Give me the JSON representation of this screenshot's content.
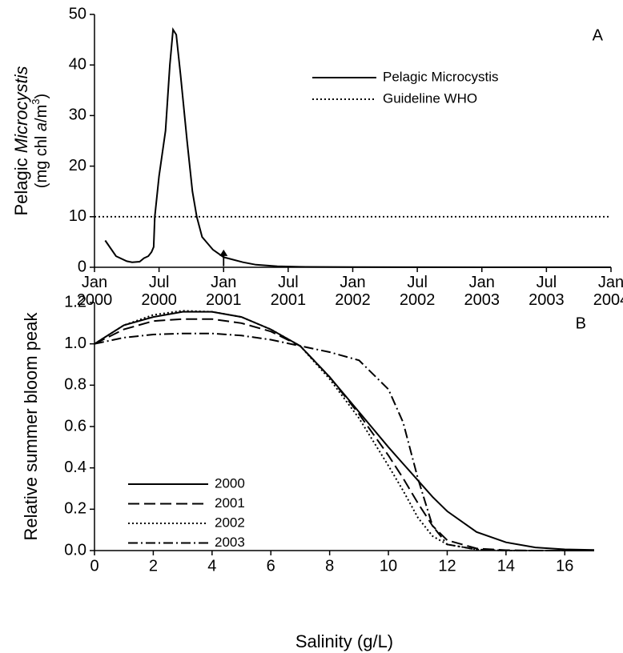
{
  "chart_data": [
    {
      "type": "line",
      "panel_label": "A",
      "ylabel": {
        "line1": [
          "Pelagic ",
          "Microcystis"
        ],
        "line2": [
          "(mg chl ",
          "a",
          "/m",
          "3",
          ")"
        ]
      },
      "x": [
        1,
        2,
        3,
        3.5,
        4.2,
        4.6,
        5,
        5.3,
        5.5,
        5.6,
        6,
        6.6,
        7,
        7.3,
        7.6,
        8,
        8.6,
        9.1,
        9.5,
        10,
        11,
        12,
        13.8,
        15,
        17,
        19,
        24,
        30,
        36,
        42,
        48
      ],
      "series": [
        {
          "name": "Pelagic Microcystis",
          "color": "#000000",
          "style": "solid",
          "values": [
            5.3,
            2.2,
            1.2,
            1.0,
            1.1,
            1.8,
            2.2,
            3.0,
            4.0,
            10,
            18,
            27,
            40,
            47,
            46,
            38,
            25,
            15,
            10,
            6,
            3.5,
            2,
            1,
            0.5,
            0.2,
            0.1,
            0.03,
            0.01,
            0,
            0,
            0
          ]
        }
      ],
      "hlines": [
        {
          "name": "Guideline WHO",
          "value": 10,
          "color": "#000000",
          "style": "dotted"
        }
      ],
      "arrow": {
        "x": 12,
        "y": [
          0.2,
          3.5
        ]
      },
      "xlim": [
        0,
        48
      ],
      "xticks": [
        {
          "value": 0,
          "label": "Jan 2000"
        },
        {
          "value": 6,
          "label": "Jul 2000"
        },
        {
          "value": 12,
          "label": "Jan 2001"
        },
        {
          "value": 18,
          "label": "Jul 2001"
        },
        {
          "value": 24,
          "label": "Jan 2002"
        },
        {
          "value": 30,
          "label": "Jul 2002"
        },
        {
          "value": 36,
          "label": "Jan 2003"
        },
        {
          "value": 42,
          "label": "Jul 2003"
        },
        {
          "value": 48,
          "label": "Jan 2004"
        }
      ],
      "ylim": [
        0,
        50
      ],
      "yticks": [
        0,
        10,
        20,
        30,
        40,
        50
      ]
    },
    {
      "type": "line",
      "panel_label": "B",
      "ylabel": "Relative summer bloom peak",
      "xlabel": "Salinity (g/L)",
      "x": [
        0,
        1,
        2,
        3,
        4,
        5,
        6,
        7,
        8,
        9,
        10,
        10.5,
        11,
        11.5,
        12,
        13,
        14,
        15,
        16,
        17
      ],
      "series": [
        {
          "name": "2000",
          "color": "#000000",
          "style": "solid",
          "values": [
            1.0,
            1.09,
            1.13,
            1.155,
            1.155,
            1.13,
            1.07,
            0.99,
            0.84,
            0.67,
            0.5,
            0.42,
            0.34,
            0.26,
            0.19,
            0.09,
            0.04,
            0.015,
            0.006,
            0.003
          ]
        },
        {
          "name": "2001",
          "color": "#000000",
          "style": "dashed",
          "values": [
            1.0,
            1.07,
            1.11,
            1.12,
            1.12,
            1.1,
            1.06,
            0.99,
            0.84,
            0.66,
            0.46,
            0.35,
            0.23,
            0.12,
            0.05,
            0.01,
            0.002,
            0,
            0,
            0
          ]
        },
        {
          "name": "2002",
          "color": "#000000",
          "style": "dotted",
          "values": [
            1.0,
            1.09,
            1.14,
            1.16,
            1.155,
            1.13,
            1.07,
            0.99,
            0.83,
            0.64,
            0.41,
            0.29,
            0.16,
            0.07,
            0.03,
            0.005,
            0,
            0,
            0,
            0
          ]
        },
        {
          "name": "2003",
          "color": "#000000",
          "style": "dashdot",
          "values": [
            1.0,
            1.03,
            1.045,
            1.05,
            1.05,
            1.04,
            1.02,
            0.99,
            0.96,
            0.92,
            0.78,
            0.62,
            0.35,
            0.12,
            0.03,
            0.005,
            0,
            0,
            0,
            0
          ]
        }
      ],
      "xlim": [
        0,
        17
      ],
      "xticks": [
        0,
        2,
        4,
        6,
        8,
        10,
        12,
        14,
        16
      ],
      "ylim": [
        0,
        1.2
      ],
      "yticks": [
        {
          "value": 0,
          "label": "0.0"
        },
        0.2,
        0.4,
        0.6,
        0.8,
        {
          "value": 1,
          "label": "1.0"
        },
        1.2
      ]
    }
  ]
}
